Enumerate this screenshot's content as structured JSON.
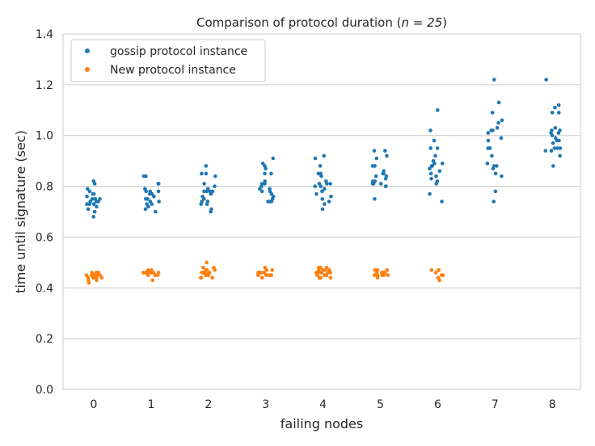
{
  "chart_data": {
    "type": "scatter",
    "title": "Comparison of protocol duration (",
    "title_math": "n = 25",
    "title_suffix": ")",
    "xlabel": "failing nodes",
    "ylabel": "time until signature (sec)",
    "categories": [
      "0",
      "1",
      "2",
      "3",
      "4",
      "5",
      "6",
      "7",
      "8"
    ],
    "ylim": [
      0.0,
      1.4
    ],
    "yticks": [
      "0.0",
      "0.2",
      "0.4",
      "0.6",
      "0.8",
      "1.0",
      "1.2",
      "1.4"
    ],
    "grid": true,
    "legend_position": "top-left",
    "series": [
      {
        "name": "gossip protocol instance",
        "color": "#1f77b4",
        "points": [
          [
            0,
            0.82
          ],
          [
            0,
            0.81
          ],
          [
            0,
            0.79
          ],
          [
            0,
            0.78
          ],
          [
            0,
            0.77
          ],
          [
            0,
            0.77
          ],
          [
            0,
            0.76
          ],
          [
            0,
            0.75
          ],
          [
            0,
            0.75
          ],
          [
            0,
            0.75
          ],
          [
            0,
            0.74
          ],
          [
            0,
            0.74
          ],
          [
            0,
            0.74
          ],
          [
            0,
            0.73
          ],
          [
            0,
            0.73
          ],
          [
            0,
            0.73
          ],
          [
            0,
            0.72
          ],
          [
            0,
            0.71
          ],
          [
            0,
            0.7
          ],
          [
            0,
            0.68
          ],
          [
            1,
            0.84
          ],
          [
            1,
            0.84
          ],
          [
            1,
            0.81
          ],
          [
            1,
            0.81
          ],
          [
            1,
            0.79
          ],
          [
            1,
            0.78
          ],
          [
            1,
            0.78
          ],
          [
            1,
            0.78
          ],
          [
            1,
            0.77
          ],
          [
            1,
            0.77
          ],
          [
            1,
            0.76
          ],
          [
            1,
            0.75
          ],
          [
            1,
            0.75
          ],
          [
            1,
            0.74
          ],
          [
            1,
            0.74
          ],
          [
            1,
            0.73
          ],
          [
            1,
            0.73
          ],
          [
            1,
            0.72
          ],
          [
            1,
            0.71
          ],
          [
            1,
            0.7
          ],
          [
            2,
            0.88
          ],
          [
            2,
            0.85
          ],
          [
            2,
            0.85
          ],
          [
            2,
            0.84
          ],
          [
            2,
            0.81
          ],
          [
            2,
            0.8
          ],
          [
            2,
            0.79
          ],
          [
            2,
            0.78
          ],
          [
            2,
            0.78
          ],
          [
            2,
            0.78
          ],
          [
            2,
            0.78
          ],
          [
            2,
            0.77
          ],
          [
            2,
            0.76
          ],
          [
            2,
            0.75
          ],
          [
            2,
            0.74
          ],
          [
            2,
            0.74
          ],
          [
            2,
            0.73
          ],
          [
            2,
            0.73
          ],
          [
            2,
            0.71
          ],
          [
            2,
            0.7
          ],
          [
            3,
            0.91
          ],
          [
            3,
            0.89
          ],
          [
            3,
            0.88
          ],
          [
            3,
            0.87
          ],
          [
            3,
            0.85
          ],
          [
            3,
            0.85
          ],
          [
            3,
            0.82
          ],
          [
            3,
            0.81
          ],
          [
            3,
            0.81
          ],
          [
            3,
            0.8
          ],
          [
            3,
            0.79
          ],
          [
            3,
            0.79
          ],
          [
            3,
            0.78
          ],
          [
            3,
            0.78
          ],
          [
            3,
            0.77
          ],
          [
            3,
            0.76
          ],
          [
            3,
            0.75
          ],
          [
            3,
            0.74
          ],
          [
            3,
            0.74
          ],
          [
            3,
            0.74
          ],
          [
            4,
            0.92
          ],
          [
            4,
            0.91
          ],
          [
            4,
            0.88
          ],
          [
            4,
            0.85
          ],
          [
            4,
            0.85
          ],
          [
            4,
            0.84
          ],
          [
            4,
            0.82
          ],
          [
            4,
            0.81
          ],
          [
            4,
            0.81
          ],
          [
            4,
            0.81
          ],
          [
            4,
            0.8
          ],
          [
            4,
            0.8
          ],
          [
            4,
            0.79
          ],
          [
            4,
            0.78
          ],
          [
            4,
            0.77
          ],
          [
            4,
            0.76
          ],
          [
            4,
            0.75
          ],
          [
            4,
            0.74
          ],
          [
            4,
            0.73
          ],
          [
            4,
            0.71
          ],
          [
            5,
            0.94
          ],
          [
            5,
            0.94
          ],
          [
            5,
            0.92
          ],
          [
            5,
            0.91
          ],
          [
            5,
            0.88
          ],
          [
            5,
            0.88
          ],
          [
            5,
            0.86
          ],
          [
            5,
            0.85
          ],
          [
            5,
            0.85
          ],
          [
            5,
            0.84
          ],
          [
            5,
            0.84
          ],
          [
            5,
            0.83
          ],
          [
            5,
            0.82
          ],
          [
            5,
            0.82
          ],
          [
            5,
            0.81
          ],
          [
            5,
            0.81
          ],
          [
            5,
            0.81
          ],
          [
            5,
            0.8
          ],
          [
            5,
            0.8
          ],
          [
            5,
            0.75
          ],
          [
            6,
            1.1
          ],
          [
            6,
            1.02
          ],
          [
            6,
            0.98
          ],
          [
            6,
            0.95
          ],
          [
            6,
            0.95
          ],
          [
            6,
            0.92
          ],
          [
            6,
            0.9
          ],
          [
            6,
            0.89
          ],
          [
            6,
            0.89
          ],
          [
            6,
            0.88
          ],
          [
            6,
            0.88
          ],
          [
            6,
            0.87
          ],
          [
            6,
            0.86
          ],
          [
            6,
            0.85
          ],
          [
            6,
            0.84
          ],
          [
            6,
            0.83
          ],
          [
            6,
            0.82
          ],
          [
            6,
            0.81
          ],
          [
            6,
            0.77
          ],
          [
            6,
            0.74
          ],
          [
            7,
            1.22
          ],
          [
            7,
            1.13
          ],
          [
            7,
            1.09
          ],
          [
            7,
            1.06
          ],
          [
            7,
            1.05
          ],
          [
            7,
            1.03
          ],
          [
            7,
            1.02
          ],
          [
            7,
            1.02
          ],
          [
            7,
            1.01
          ],
          [
            7,
            0.99
          ],
          [
            7,
            0.98
          ],
          [
            7,
            0.95
          ],
          [
            7,
            0.95
          ],
          [
            7,
            0.92
          ],
          [
            7,
            0.89
          ],
          [
            7,
            0.88
          ],
          [
            7,
            0.88
          ],
          [
            7,
            0.87
          ],
          [
            7,
            0.85
          ],
          [
            7,
            0.84
          ],
          [
            7,
            0.78
          ],
          [
            7,
            0.74
          ],
          [
            8,
            1.22
          ],
          [
            8,
            1.12
          ],
          [
            8,
            1.11
          ],
          [
            8,
            1.09
          ],
          [
            8,
            1.09
          ],
          [
            8,
            1.03
          ],
          [
            8,
            1.02
          ],
          [
            8,
            1.02
          ],
          [
            8,
            1.01
          ],
          [
            8,
            1.01
          ],
          [
            8,
            1.0
          ],
          [
            8,
            0.99
          ],
          [
            8,
            0.98
          ],
          [
            8,
            0.98
          ],
          [
            8,
            0.97
          ],
          [
            8,
            0.95
          ],
          [
            8,
            0.95
          ],
          [
            8,
            0.95
          ],
          [
            8,
            0.94
          ],
          [
            8,
            0.94
          ],
          [
            8,
            0.92
          ],
          [
            8,
            0.88
          ]
        ]
      },
      {
        "name": "New protocol instance",
        "color": "#ff7f0e",
        "points": [
          [
            0,
            0.46
          ],
          [
            0,
            0.46
          ],
          [
            0,
            0.46
          ],
          [
            0,
            0.46
          ],
          [
            0,
            0.45
          ],
          [
            0,
            0.45
          ],
          [
            0,
            0.45
          ],
          [
            0,
            0.45
          ],
          [
            0,
            0.45
          ],
          [
            0,
            0.45
          ],
          [
            0,
            0.44
          ],
          [
            0,
            0.44
          ],
          [
            0,
            0.44
          ],
          [
            0,
            0.44
          ],
          [
            0,
            0.43
          ],
          [
            0,
            0.43
          ],
          [
            0,
            0.42
          ],
          [
            1,
            0.47
          ],
          [
            1,
            0.47
          ],
          [
            1,
            0.46
          ],
          [
            1,
            0.46
          ],
          [
            1,
            0.46
          ],
          [
            1,
            0.46
          ],
          [
            1,
            0.46
          ],
          [
            1,
            0.46
          ],
          [
            1,
            0.46
          ],
          [
            1,
            0.46
          ],
          [
            1,
            0.45
          ],
          [
            1,
            0.45
          ],
          [
            1,
            0.45
          ],
          [
            1,
            0.43
          ],
          [
            2,
            0.5
          ],
          [
            2,
            0.48
          ],
          [
            2,
            0.48
          ],
          [
            2,
            0.47
          ],
          [
            2,
            0.47
          ],
          [
            2,
            0.47
          ],
          [
            2,
            0.46
          ],
          [
            2,
            0.46
          ],
          [
            2,
            0.46
          ],
          [
            2,
            0.46
          ],
          [
            2,
            0.46
          ],
          [
            2,
            0.45
          ],
          [
            2,
            0.45
          ],
          [
            2,
            0.45
          ],
          [
            2,
            0.44
          ],
          [
            2,
            0.44
          ],
          [
            2,
            0.44
          ],
          [
            3,
            0.48
          ],
          [
            3,
            0.47
          ],
          [
            3,
            0.47
          ],
          [
            3,
            0.46
          ],
          [
            3,
            0.46
          ],
          [
            3,
            0.46
          ],
          [
            3,
            0.46
          ],
          [
            3,
            0.46
          ],
          [
            3,
            0.46
          ],
          [
            3,
            0.45
          ],
          [
            3,
            0.45
          ],
          [
            3,
            0.45
          ],
          [
            3,
            0.45
          ],
          [
            3,
            0.44
          ],
          [
            4,
            0.48
          ],
          [
            4,
            0.48
          ],
          [
            4,
            0.48
          ],
          [
            4,
            0.47
          ],
          [
            4,
            0.47
          ],
          [
            4,
            0.47
          ],
          [
            4,
            0.47
          ],
          [
            4,
            0.46
          ],
          [
            4,
            0.46
          ],
          [
            4,
            0.46
          ],
          [
            4,
            0.46
          ],
          [
            4,
            0.46
          ],
          [
            4,
            0.46
          ],
          [
            4,
            0.46
          ],
          [
            4,
            0.45
          ],
          [
            4,
            0.45
          ],
          [
            4,
            0.45
          ],
          [
            4,
            0.44
          ],
          [
            4,
            0.44
          ],
          [
            4,
            0.44
          ],
          [
            5,
            0.47
          ],
          [
            5,
            0.47
          ],
          [
            5,
            0.47
          ],
          [
            5,
            0.46
          ],
          [
            5,
            0.46
          ],
          [
            5,
            0.46
          ],
          [
            5,
            0.46
          ],
          [
            5,
            0.46
          ],
          [
            5,
            0.45
          ],
          [
            5,
            0.45
          ],
          [
            5,
            0.45
          ],
          [
            5,
            0.45
          ],
          [
            5,
            0.45
          ],
          [
            5,
            0.44
          ],
          [
            6,
            0.47
          ],
          [
            6,
            0.47
          ],
          [
            6,
            0.47
          ],
          [
            6,
            0.46
          ],
          [
            6,
            0.45
          ],
          [
            6,
            0.45
          ],
          [
            6,
            0.44
          ],
          [
            6,
            0.44
          ],
          [
            6,
            0.43
          ]
        ]
      }
    ]
  }
}
